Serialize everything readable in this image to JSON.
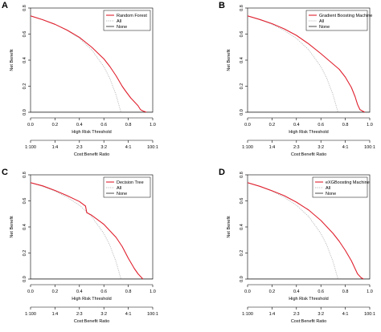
{
  "figure": {
    "panels": [
      "A",
      "B",
      "C",
      "D"
    ]
  },
  "colors": {
    "model": "#e0202e",
    "all": "#b8b8b8",
    "none": "#000000"
  },
  "chart_data": [
    {
      "panel": "A",
      "type": "line",
      "xlabel": "High Risk Threshold",
      "ylabel": "Net Benefit",
      "secondary_xlabel": "Cost:Benefit Ratio",
      "xlim": [
        0,
        1
      ],
      "ylim": [
        0,
        0.8
      ],
      "x_ticks": [
        "0.0",
        "0.2",
        "0.4",
        "0.6",
        "0.8",
        "1.0"
      ],
      "y_ticks": [
        "0.0",
        "0.2",
        "0.4",
        "0.6",
        "0.8"
      ],
      "ratio_ticks": [
        "1:100",
        "1:4",
        "2:3",
        "3:2",
        "4:1",
        "100:1"
      ],
      "legend": {
        "position": "top-right",
        "entries": [
          "Random Forest",
          "All",
          "None"
        ]
      },
      "series": [
        {
          "name": "Random Forest",
          "style": "solid",
          "x": [
            0,
            0.1,
            0.2,
            0.3,
            0.4,
            0.5,
            0.6,
            0.65,
            0.7,
            0.75,
            0.78,
            0.82,
            0.85,
            0.88,
            0.9,
            0.92,
            0.95
          ],
          "y": [
            0.74,
            0.71,
            0.675,
            0.63,
            0.575,
            0.5,
            0.41,
            0.35,
            0.28,
            0.2,
            0.16,
            0.11,
            0.08,
            0.05,
            0.02,
            0.01,
            0
          ]
        },
        {
          "name": "All",
          "style": "dotted",
          "x": [
            0,
            0.1,
            0.2,
            0.3,
            0.4,
            0.5,
            0.6,
            0.65,
            0.7,
            0.74
          ],
          "y": [
            0.74,
            0.711,
            0.675,
            0.628,
            0.567,
            0.48,
            0.35,
            0.257,
            0.133,
            0
          ]
        },
        {
          "name": "None",
          "style": "solid",
          "x": [
            0,
            1
          ],
          "y": [
            0,
            0
          ]
        }
      ]
    },
    {
      "panel": "B",
      "type": "line",
      "xlabel": "High Risk Threshold",
      "ylabel": "Net Benefit",
      "secondary_xlabel": "Cost:Benefit Ratio",
      "xlim": [
        0,
        1
      ],
      "ylim": [
        0,
        0.8
      ],
      "x_ticks": [
        "0.0",
        "0.2",
        "0.4",
        "0.6",
        "0.8",
        "1.0"
      ],
      "y_ticks": [
        "0.0",
        "0.2",
        "0.4",
        "0.6",
        "0.8"
      ],
      "ratio_ticks": [
        "1:100",
        "1:4",
        "2:3",
        "3:2",
        "4:1",
        "100:1"
      ],
      "legend": {
        "position": "top-right",
        "entries": [
          "Gradient Boosting Machine",
          "All",
          "None"
        ]
      },
      "series": [
        {
          "name": "Gradient Boosting Machine",
          "style": "solid",
          "x": [
            0,
            0.1,
            0.2,
            0.3,
            0.4,
            0.5,
            0.6,
            0.7,
            0.75,
            0.8,
            0.85,
            0.88,
            0.9,
            0.92,
            0.94,
            0.96
          ],
          "y": [
            0.74,
            0.712,
            0.68,
            0.64,
            0.59,
            0.525,
            0.45,
            0.37,
            0.33,
            0.27,
            0.19,
            0.12,
            0.06,
            0.02,
            0.01,
            0
          ]
        },
        {
          "name": "All",
          "style": "dotted",
          "x": [
            0,
            0.1,
            0.2,
            0.3,
            0.4,
            0.5,
            0.6,
            0.65,
            0.7,
            0.74
          ],
          "y": [
            0.74,
            0.711,
            0.675,
            0.628,
            0.567,
            0.48,
            0.35,
            0.257,
            0.133,
            0
          ]
        },
        {
          "name": "None",
          "style": "solid",
          "x": [
            0,
            1
          ],
          "y": [
            0,
            0
          ]
        }
      ]
    },
    {
      "panel": "C",
      "type": "line",
      "xlabel": "High Risk Threshold",
      "ylabel": "Net Benefit",
      "secondary_xlabel": "Cost:Benefit Ratio",
      "xlim": [
        0,
        1
      ],
      "ylim": [
        0,
        0.8
      ],
      "x_ticks": [
        "0.0",
        "0.2",
        "0.4",
        "0.6",
        "0.8",
        "1.0"
      ],
      "y_ticks": [
        "0.0",
        "0.2",
        "0.4",
        "0.6",
        "0.8"
      ],
      "ratio_ticks": [
        "1:100",
        "1:4",
        "2:3",
        "3:2",
        "4:1",
        "100:1"
      ],
      "legend": {
        "position": "top-right",
        "entries": [
          "Decision Tree",
          "All",
          "None"
        ]
      },
      "series": [
        {
          "name": "Decision Tree",
          "style": "solid",
          "x": [
            0,
            0.1,
            0.2,
            0.3,
            0.4,
            0.45,
            0.46,
            0.5,
            0.6,
            0.7,
            0.75,
            0.8,
            0.85,
            0.88,
            0.9,
            0.92
          ],
          "y": [
            0.74,
            0.715,
            0.68,
            0.64,
            0.595,
            0.56,
            0.51,
            0.49,
            0.42,
            0.32,
            0.25,
            0.16,
            0.08,
            0.04,
            0.02,
            0
          ]
        },
        {
          "name": "All",
          "style": "dotted",
          "x": [
            0,
            0.1,
            0.2,
            0.3,
            0.4,
            0.5,
            0.6,
            0.65,
            0.7,
            0.74
          ],
          "y": [
            0.74,
            0.711,
            0.675,
            0.628,
            0.567,
            0.48,
            0.35,
            0.257,
            0.133,
            0
          ]
        },
        {
          "name": "None",
          "style": "solid",
          "x": [
            0,
            1
          ],
          "y": [
            0,
            0
          ]
        }
      ]
    },
    {
      "panel": "D",
      "type": "line",
      "xlabel": "High Risk Threshold",
      "ylabel": "Net Benefit",
      "secondary_xlabel": "Cost:Benefit Ratio",
      "xlim": [
        0,
        1
      ],
      "ylim": [
        0,
        0.8
      ],
      "x_ticks": [
        "0.0",
        "0.2",
        "0.4",
        "0.6",
        "0.8",
        "1.0"
      ],
      "y_ticks": [
        "0.0",
        "0.2",
        "0.4",
        "0.6",
        "0.8"
      ],
      "ratio_ticks": [
        "1:100",
        "1:4",
        "2:3",
        "3:2",
        "4:1",
        "100:1"
      ],
      "legend": {
        "position": "top-right",
        "entries": [
          "eXGBoosting Machine",
          "All",
          "None"
        ]
      },
      "series": [
        {
          "name": "eXGBoosting Machine",
          "style": "solid",
          "x": [
            0,
            0.1,
            0.2,
            0.3,
            0.4,
            0.5,
            0.6,
            0.65,
            0.7,
            0.75,
            0.8,
            0.85,
            0.88,
            0.9,
            0.93,
            0.95
          ],
          "y": [
            0.74,
            0.712,
            0.678,
            0.64,
            0.59,
            0.53,
            0.45,
            0.4,
            0.35,
            0.29,
            0.22,
            0.14,
            0.08,
            0.04,
            0.01,
            0
          ]
        },
        {
          "name": "All",
          "style": "dotted",
          "x": [
            0,
            0.1,
            0.2,
            0.3,
            0.4,
            0.5,
            0.6,
            0.65,
            0.7,
            0.74
          ],
          "y": [
            0.74,
            0.711,
            0.675,
            0.628,
            0.567,
            0.48,
            0.35,
            0.257,
            0.133,
            0
          ]
        },
        {
          "name": "None",
          "style": "solid",
          "x": [
            0,
            1
          ],
          "y": [
            0,
            0
          ]
        }
      ]
    }
  ]
}
